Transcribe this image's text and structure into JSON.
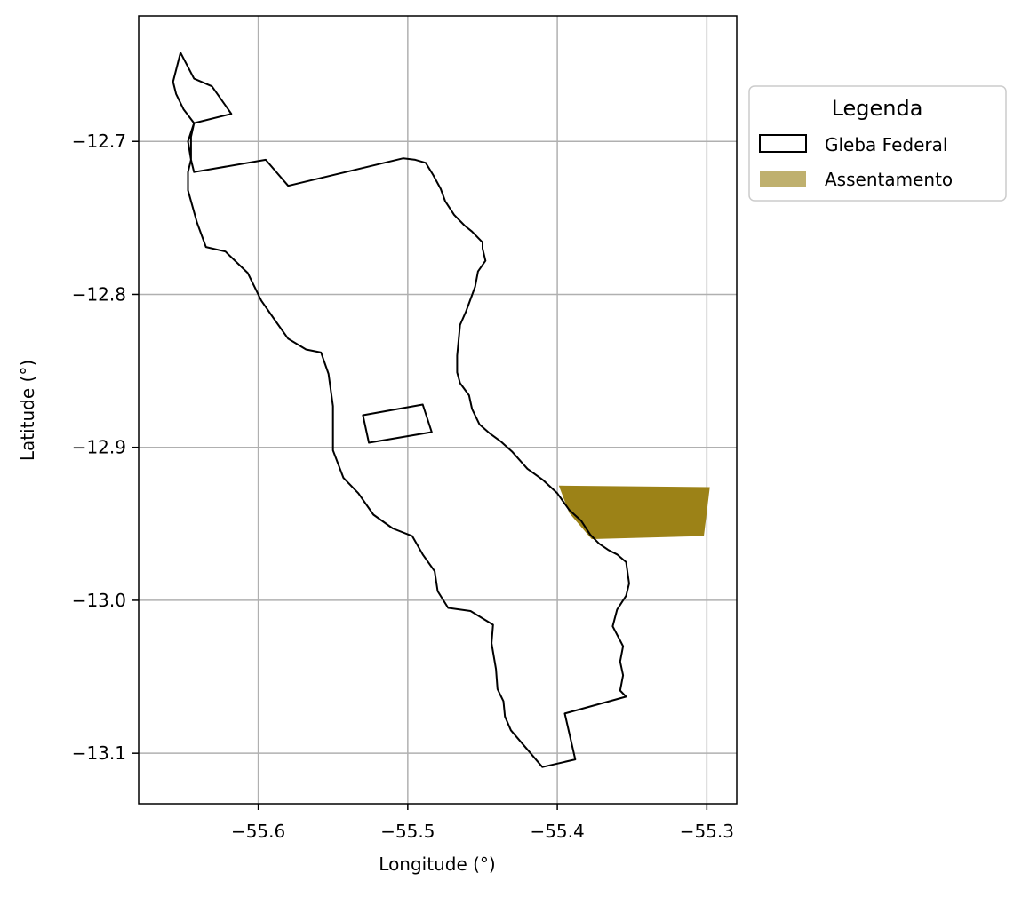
{
  "chart_data": {
    "type": "map",
    "xlabel": "Longitude (°)",
    "ylabel": "Latitude (°)",
    "xlim": [
      -55.68,
      -55.28
    ],
    "ylim": [
      -13.133,
      -12.618
    ],
    "grid": true,
    "xticks": [
      -55.6,
      -55.5,
      -55.4,
      -55.3
    ],
    "xtick_labels": [
      "−55.6",
      "−55.5",
      "−55.4",
      "−55.3"
    ],
    "yticks": [
      -12.7,
      -12.8,
      -12.9,
      -13.0,
      -13.1
    ],
    "ytick_labels": [
      "−12.7",
      "−12.8",
      "−12.9",
      "−13.0",
      "−13.1"
    ],
    "legend": {
      "title": "Legenda",
      "placement": "outside right, top",
      "entries": [
        {
          "label": "Gleba Federal",
          "style": "outline",
          "color": "#000000"
        },
        {
          "label": "Assentamento",
          "style": "fill",
          "color": "#BFB06E"
        }
      ]
    },
    "layers": [
      {
        "name": "Gleba Federal",
        "style": "outline",
        "stroke": "#000000",
        "polygons": [
          {
            "part": "main",
            "coords": [
              [
                -55.652,
                -12.642
              ],
              [
                -55.643,
                -12.659
              ],
              [
                -55.631,
                -12.664
              ],
              [
                -55.618,
                -12.682
              ],
              [
                -55.643,
                -12.688
              ],
              [
                -55.645,
                -12.697
              ],
              [
                -55.645,
                -12.712
              ],
              [
                -55.643,
                -12.72
              ],
              [
                -55.595,
                -12.712
              ],
              [
                -55.58,
                -12.729
              ],
              [
                -55.503,
                -12.711
              ],
              [
                -55.495,
                -12.712
              ],
              [
                -55.488,
                -12.714
              ],
              [
                -55.483,
                -12.722
              ],
              [
                -55.478,
                -12.731
              ],
              [
                -55.475,
                -12.739
              ],
              [
                -55.469,
                -12.748
              ],
              [
                -55.462,
                -12.755
              ],
              [
                -55.457,
                -12.759
              ],
              [
                -55.45,
                -12.766
              ],
              [
                -55.45,
                -12.77
              ],
              [
                -55.448,
                -12.778
              ],
              [
                -55.453,
                -12.785
              ],
              [
                -55.455,
                -12.795
              ],
              [
                -55.461,
                -12.811
              ],
              [
                -55.465,
                -12.82
              ],
              [
                -55.467,
                -12.84
              ],
              [
                -55.467,
                -12.851
              ],
              [
                -55.465,
                -12.858
              ],
              [
                -55.459,
                -12.866
              ],
              [
                -55.457,
                -12.875
              ],
              [
                -55.452,
                -12.885
              ],
              [
                -55.445,
                -12.891
              ],
              [
                -55.438,
                -12.896
              ],
              [
                -55.43,
                -12.903
              ],
              [
                -55.42,
                -12.914
              ],
              [
                -55.41,
                -12.921
              ],
              [
                -55.4,
                -12.93
              ],
              [
                -55.392,
                -12.941
              ],
              [
                -55.384,
                -12.948
              ],
              [
                -55.378,
                -12.957
              ],
              [
                -55.372,
                -12.963
              ],
              [
                -55.366,
                -12.967
              ],
              [
                -55.36,
                -12.97
              ],
              [
                -55.354,
                -12.975
              ],
              [
                -55.352,
                -12.989
              ],
              [
                -55.354,
                -12.997
              ],
              [
                -55.36,
                -13.006
              ],
              [
                -55.363,
                -13.017
              ],
              [
                -55.356,
                -13.03
              ],
              [
                -55.358,
                -13.04
              ],
              [
                -55.356,
                -13.049
              ],
              [
                -55.358,
                -13.059
              ],
              [
                -55.354,
                -13.063
              ],
              [
                -55.395,
                -13.074
              ],
              [
                -55.388,
                -13.104
              ],
              [
                -55.41,
                -13.109
              ],
              [
                -55.431,
                -13.085
              ],
              [
                -55.435,
                -13.076
              ],
              [
                -55.436,
                -13.066
              ],
              [
                -55.44,
                -13.058
              ],
              [
                -55.441,
                -13.045
              ],
              [
                -55.444,
                -13.028
              ],
              [
                -55.443,
                -13.016
              ],
              [
                -55.458,
                -13.007
              ],
              [
                -55.473,
                -13.005
              ],
              [
                -55.48,
                -12.994
              ],
              [
                -55.482,
                -12.981
              ],
              [
                -55.49,
                -12.97
              ],
              [
                -55.497,
                -12.958
              ],
              [
                -55.51,
                -12.953
              ],
              [
                -55.523,
                -12.944
              ],
              [
                -55.533,
                -12.93
              ],
              [
                -55.543,
                -12.92
              ],
              [
                -55.55,
                -12.902
              ],
              [
                -55.55,
                -12.89
              ],
              [
                -55.55,
                -12.873
              ],
              [
                -55.553,
                -12.852
              ],
              [
                -55.558,
                -12.838
              ],
              [
                -55.568,
                -12.836
              ],
              [
                -55.58,
                -12.829
              ],
              [
                -55.588,
                -12.818
              ],
              [
                -55.598,
                -12.804
              ],
              [
                -55.607,
                -12.786
              ],
              [
                -55.622,
                -12.772
              ],
              [
                -55.635,
                -12.769
              ],
              [
                -55.641,
                -12.753
              ],
              [
                -55.647,
                -12.732
              ],
              [
                -55.647,
                -12.72
              ],
              [
                -55.645,
                -12.712
              ],
              [
                -55.647,
                -12.7
              ],
              [
                -55.643,
                -12.688
              ],
              [
                -55.65,
                -12.679
              ],
              [
                -55.655,
                -12.669
              ],
              [
                -55.657,
                -12.661
              ],
              [
                -55.652,
                -12.642
              ]
            ]
          },
          {
            "part": "notch",
            "coords": [
              [
                -55.53,
                -12.879
              ],
              [
                -55.49,
                -12.872
              ],
              [
                -55.484,
                -12.89
              ],
              [
                -55.526,
                -12.897
              ]
            ]
          }
        ]
      },
      {
        "name": "Assentamento",
        "style": "fill",
        "fill": "#9C8217",
        "polygons": [
          {
            "coords": [
              [
                -55.399,
                -12.925
              ],
              [
                -55.298,
                -12.926
              ],
              [
                -55.302,
                -12.958
              ],
              [
                -55.377,
                -12.96
              ],
              [
                -55.392,
                -12.943
              ],
              [
                -55.399,
                -12.925
              ]
            ]
          }
        ]
      }
    ]
  }
}
